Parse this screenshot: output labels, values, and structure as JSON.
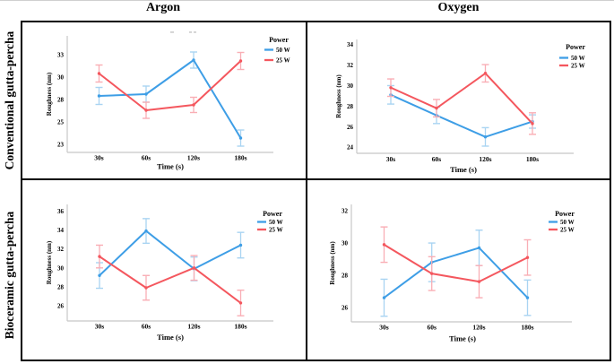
{
  "figure": {
    "column_headers": [
      "Argon",
      "Oxygen"
    ],
    "row_headers": [
      "Conventional gutta-percha",
      "Bioceramic gutta-percha"
    ]
  },
  "colors": {
    "series_50w": "#3E9EE6",
    "series_50w_light": "#A9D4F2",
    "series_25w": "#F4575E",
    "series_25w_light": "#F9AEB5",
    "axis_line": "#C8C8C8",
    "frame": "#000000",
    "text": "#000000"
  },
  "chart_data": [
    {
      "id": "conventional-argon",
      "position": "top-left",
      "row": "Conventional gutta-percha",
      "column": "Argon",
      "type": "line",
      "xlabel": "Time (s)",
      "ylabel": "Roughness (nm)",
      "categories": [
        "30s",
        "60s",
        "120s",
        "180s"
      ],
      "ytick_values": [
        22.5,
        25,
        27.5,
        30,
        32.5
      ],
      "ytick_labels": [
        "23",
        "25",
        "28",
        "30",
        "33"
      ],
      "ylim": [
        21.6,
        34.6
      ],
      "faded_title_visible": true,
      "legend": {
        "title": "Power",
        "entries": [
          "50 W",
          "25 W"
        ]
      },
      "series": [
        {
          "name": "50 W",
          "color_key": "series_50w",
          "light_key": "series_50w_light",
          "values": [
            27.9,
            28.1,
            31.9,
            23.2
          ],
          "errors": [
            0.95,
            0.9,
            0.9,
            0.9
          ]
        },
        {
          "name": "25 W",
          "color_key": "series_25w",
          "light_key": "series_25w_light",
          "values": [
            30.4,
            26.3,
            26.9,
            31.8
          ],
          "errors": [
            0.95,
            0.9,
            0.85,
            0.95
          ]
        }
      ]
    },
    {
      "id": "conventional-oxygen",
      "position": "top-right",
      "row": "Conventional gutta-percha",
      "column": "Oxygen",
      "type": "line",
      "xlabel": "Time (s)",
      "ylabel": "Roughness (nm)",
      "categories": [
        "30s",
        "60s",
        "120s",
        "180s"
      ],
      "ytick_values": [
        24,
        26,
        28,
        30,
        32,
        34
      ],
      "ytick_labels": [
        "24",
        "26",
        "28",
        "30",
        "32",
        "34"
      ],
      "ylim": [
        23.4,
        34.5
      ],
      "legend": {
        "title": "Power",
        "entries": [
          "50 W",
          "25 W"
        ]
      },
      "series": [
        {
          "name": "50 W",
          "color_key": "series_50w",
          "light_key": "series_50w_light",
          "values": [
            29.1,
            27.1,
            25.0,
            26.5
          ],
          "errors": [
            0.9,
            0.8,
            0.9,
            0.65
          ]
        },
        {
          "name": "25 W",
          "color_key": "series_25w",
          "light_key": "series_25w_light",
          "values": [
            29.8,
            27.8,
            31.2,
            26.3
          ],
          "errors": [
            0.85,
            0.85,
            0.85,
            1.05
          ]
        }
      ]
    },
    {
      "id": "bioceramic-argon",
      "position": "bottom-left",
      "row": "Bioceramic gutta-percha",
      "column": "Argon",
      "type": "line",
      "xlabel": "Time (s)",
      "ylabel": "Roughness (nm)",
      "categories": [
        "30s",
        "60s",
        "120s",
        "180s"
      ],
      "ytick_values": [
        26,
        28,
        30,
        32,
        34,
        36
      ],
      "ytick_labels": [
        "26",
        "28",
        "30",
        "32",
        "34",
        "36"
      ],
      "ylim": [
        24.4,
        36.7
      ],
      "legend": {
        "title": "Power",
        "entries": [
          "50 W",
          "25 W"
        ]
      },
      "series": [
        {
          "name": "50 W",
          "color_key": "series_50w",
          "light_key": "series_50w_light",
          "values": [
            29.2,
            33.9,
            29.9,
            32.4
          ],
          "errors": [
            1.35,
            1.3,
            1.25,
            1.35
          ]
        },
        {
          "name": "25 W",
          "color_key": "series_25w",
          "light_key": "series_25w_light",
          "values": [
            31.2,
            27.9,
            30.0,
            26.3
          ],
          "errors": [
            1.2,
            1.3,
            1.3,
            1.35
          ]
        }
      ]
    },
    {
      "id": "bioceramic-oxygen",
      "position": "bottom-right",
      "row": "Bioceramic gutta-percha",
      "column": "Oxygen",
      "type": "line",
      "xlabel": "Time (s)",
      "ylabel": "Roughness (nm)",
      "categories": [
        "30s",
        "60s",
        "120s",
        "180s"
      ],
      "ytick_values": [
        26,
        28,
        30,
        32
      ],
      "ytick_labels": [
        "26",
        "28",
        "30",
        "32"
      ],
      "ylim": [
        25.1,
        32.4
      ],
      "legend": {
        "title": "Power",
        "entries": [
          "50 W",
          "25 W"
        ]
      },
      "series": [
        {
          "name": "50 W",
          "color_key": "series_50w",
          "light_key": "series_50w_light",
          "values": [
            26.6,
            28.8,
            29.7,
            26.6
          ],
          "errors": [
            1.15,
            1.2,
            1.1,
            1.1
          ]
        },
        {
          "name": "25 W",
          "color_key": "series_25w",
          "light_key": "series_25w_light",
          "values": [
            29.9,
            28.1,
            27.6,
            29.1
          ],
          "errors": [
            1.1,
            1.05,
            1.0,
            1.1
          ]
        }
      ]
    }
  ]
}
